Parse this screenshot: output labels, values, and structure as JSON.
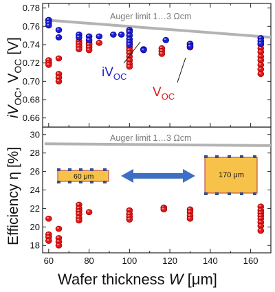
{
  "chart_data": [
    {
      "type": "scatter",
      "ylabel_parts": [
        "iV",
        "OC",
        ", V",
        "OC",
        " [V]"
      ],
      "ylim": [
        0.65,
        0.785
      ],
      "yticks": [
        "0.66",
        "0.68",
        "0.70",
        "0.72",
        "0.74",
        "0.76",
        "0.78"
      ],
      "xlim": [
        57,
        170
      ],
      "auger_label": "Auger limit 1…3 Ωcm",
      "auger_line": [
        [
          58,
          0.767
        ],
        [
          170,
          0.748
        ]
      ],
      "series": [
        {
          "name": "iVOC",
          "label_parts": [
            "iV",
            "OC"
          ],
          "color": "#1f1fd6",
          "points": [
            [
              60,
              0.767
            ],
            [
              60,
              0.764
            ],
            [
              60,
              0.761
            ],
            [
              65,
              0.756
            ],
            [
              65,
              0.748
            ],
            [
              75,
              0.751
            ],
            [
              75,
              0.748
            ],
            [
              80,
              0.749
            ],
            [
              80,
              0.745
            ],
            [
              85,
              0.749
            ],
            [
              92,
              0.751
            ],
            [
              96,
              0.751
            ],
            [
              100,
              0.756
            ],
            [
              100,
              0.754
            ],
            [
              100,
              0.75
            ],
            [
              100,
              0.746
            ],
            [
              100,
              0.743
            ],
            [
              100,
              0.74
            ],
            [
              107,
              0.735
            ],
            [
              107,
              0.734
            ],
            [
              118,
              0.745
            ],
            [
              130,
              0.741
            ],
            [
              130,
              0.738
            ],
            [
              165,
              0.747
            ],
            [
              165,
              0.744
            ],
            [
              165,
              0.741
            ]
          ]
        },
        {
          "name": "VOC",
          "label_parts": [
            "V",
            "OC"
          ],
          "color": "#e11a1a",
          "points": [
            [
              60,
              0.723
            ],
            [
              60,
              0.72
            ],
            [
              60,
              0.718
            ],
            [
              65,
              0.725
            ],
            [
              65,
              0.708
            ],
            [
              65,
              0.704
            ],
            [
              65,
              0.7
            ],
            [
              75,
              0.744
            ],
            [
              75,
              0.741
            ],
            [
              75,
              0.738
            ],
            [
              75,
              0.735
            ],
            [
              80,
              0.742
            ],
            [
              80,
              0.74
            ],
            [
              80,
              0.737
            ],
            [
              80,
              0.734
            ],
            [
              85,
              0.742
            ],
            [
              100,
              0.74
            ],
            [
              100,
              0.737
            ],
            [
              100,
              0.734
            ],
            [
              100,
              0.731
            ],
            [
              100,
              0.727
            ],
            [
              100,
              0.723
            ],
            [
              100,
              0.719
            ],
            [
              100,
              0.716
            ],
            [
              116,
              0.736
            ],
            [
              116,
              0.733
            ],
            [
              116,
              0.73
            ],
            [
              130,
              0.74
            ],
            [
              130,
              0.737
            ],
            [
              165,
              0.74
            ],
            [
              165,
              0.736
            ],
            [
              165,
              0.732
            ],
            [
              165,
              0.727
            ],
            [
              165,
              0.723
            ],
            [
              165,
              0.718
            ],
            [
              165,
              0.713
            ],
            [
              165,
              0.708
            ]
          ]
        }
      ],
      "iv_label_anchor": [
        82,
        0.707
      ],
      "v_label_anchor": [
        118,
        0.699
      ]
    },
    {
      "type": "scatter",
      "ylabel": "Efficiency η [%]",
      "xlabel": "Wafer thickness W [μm]",
      "xlabel_parts": [
        "Wafer thickness ",
        "W",
        " [μm]"
      ],
      "ylim": [
        17.2,
        30.8
      ],
      "yticks": [
        "18",
        "20",
        "22",
        "24",
        "26",
        "28",
        "30"
      ],
      "xlim": [
        57,
        170
      ],
      "xticks": [
        "60",
        "80",
        "100",
        "120",
        "140",
        "160"
      ],
      "auger_label": "Auger limit 1…3 Ωcm",
      "auger_line": [
        [
          58,
          29.0
        ],
        [
          170,
          28.8
        ]
      ],
      "thin_wafer_label": "60 μm",
      "thick_wafer_label": "170 μm",
      "arrow_color": "#3d6fc4",
      "wafer_color": "#f7c24a",
      "series": [
        {
          "name": "Efficiency",
          "color": "#e11a1a",
          "points": [
            [
              60,
              20.9
            ],
            [
              60,
              19.2
            ],
            [
              60,
              18.9
            ],
            [
              60,
              18.5
            ],
            [
              65,
              19.8
            ],
            [
              65,
              18.8
            ],
            [
              65,
              18.4
            ],
            [
              65,
              18.0
            ],
            [
              75,
              22.4
            ],
            [
              75,
              22.0
            ],
            [
              75,
              21.7
            ],
            [
              75,
              21.4
            ],
            [
              75,
              21.0
            ],
            [
              75,
              20.7
            ],
            [
              80,
              21.6
            ],
            [
              100,
              21.8
            ],
            [
              100,
              21.4
            ],
            [
              100,
              21.1
            ],
            [
              100,
              20.8
            ],
            [
              117,
              22.1
            ],
            [
              117,
              21.9
            ],
            [
              130,
              21.9
            ],
            [
              130,
              21.6
            ],
            [
              130,
              21.2
            ],
            [
              130,
              20.9
            ],
            [
              165,
              22.2
            ],
            [
              165,
              21.8
            ],
            [
              165,
              21.5
            ],
            [
              165,
              21.2
            ],
            [
              165,
              20.9
            ],
            [
              165,
              20.5
            ],
            [
              165,
              20.1
            ],
            [
              165,
              19.6
            ]
          ]
        }
      ]
    }
  ]
}
